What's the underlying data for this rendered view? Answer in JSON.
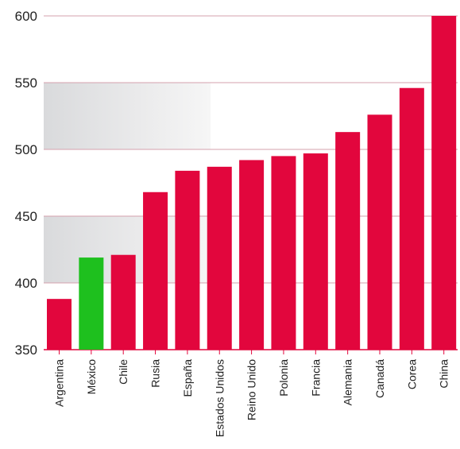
{
  "chart_data": {
    "type": "bar",
    "title": "",
    "xlabel": "",
    "ylabel": "",
    "ylim": [
      350,
      600
    ],
    "yticks": [
      350,
      400,
      450,
      500,
      550,
      600
    ],
    "grid": true,
    "categories": [
      "Argentina",
      "México",
      "Chile",
      "Rusia",
      "España",
      "Estados Unidos",
      "Reino Unido",
      "Polonia",
      "Francia",
      "Alemania",
      "Canadá",
      "Corea",
      "China"
    ],
    "values": [
      388,
      419,
      421,
      468,
      484,
      487,
      492,
      495,
      497,
      513,
      526,
      546,
      600
    ],
    "highlight_category": "México",
    "bands": [
      [
        400,
        450
      ],
      [
        500,
        550
      ]
    ],
    "colors": {
      "bar": "#e2063d",
      "highlight": "#1ec01e",
      "band": "#e4e4e6",
      "grid": "#d4a0ad",
      "axis": "#e2063d"
    }
  }
}
